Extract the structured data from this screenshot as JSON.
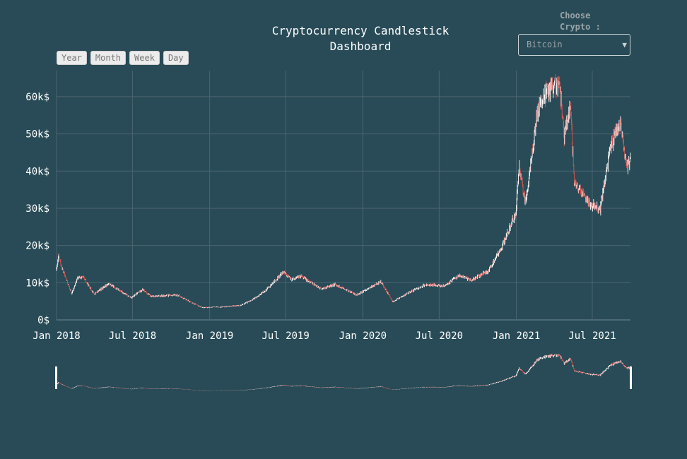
{
  "header": {
    "title_line1": "Cryptocurrency Candlestick",
    "title_line2": "Dashboard"
  },
  "range_buttons": [
    "Year",
    "Month",
    "Week",
    "Day"
  ],
  "crypto_select": {
    "label": "Choose Crypto :",
    "selected": "Bitcoin"
  },
  "colors": {
    "background": "#284b57",
    "increasing": "#ffffff",
    "decreasing": "#d9534f",
    "grid": "#4b6570"
  },
  "chart_data": {
    "type": "candlestick",
    "title": "Cryptocurrency Candlestick Dashboard",
    "xlabel": "",
    "ylabel": "",
    "x_ticks": [
      "Jan 2018",
      "Jul 2018",
      "Jan 2019",
      "Jul 2019",
      "Jan 2020",
      "Jul 2020",
      "Jan 2021",
      "Jul 2021"
    ],
    "y_ticks": [
      "0$",
      "10k$",
      "20k$",
      "30k$",
      "40k$",
      "50k$",
      "60k$"
    ],
    "ylim": [
      0,
      67000
    ],
    "xlim": [
      "2018-01-01",
      "2021-09-30"
    ],
    "grid": true,
    "range_slider": true,
    "series": [
      {
        "name": "Bitcoin",
        "approx_close_usd": [
          [
            "2018-01-01",
            13500
          ],
          [
            "2018-01-06",
            17100
          ],
          [
            "2018-01-15",
            13600
          ],
          [
            "2018-02-06",
            7000
          ],
          [
            "2018-02-20",
            11200
          ],
          [
            "2018-03-05",
            11500
          ],
          [
            "2018-04-01",
            6900
          ],
          [
            "2018-05-05",
            9800
          ],
          [
            "2018-06-28",
            5900
          ],
          [
            "2018-07-25",
            8200
          ],
          [
            "2018-08-14",
            6300
          ],
          [
            "2018-09-20",
            6500
          ],
          [
            "2018-10-15",
            6700
          ],
          [
            "2018-11-20",
            4600
          ],
          [
            "2018-12-15",
            3300
          ],
          [
            "2019-02-01",
            3500
          ],
          [
            "2019-03-15",
            3900
          ],
          [
            "2019-04-10",
            5200
          ],
          [
            "2019-05-15",
            8000
          ],
          [
            "2019-06-26",
            12900
          ],
          [
            "2019-07-15",
            10800
          ],
          [
            "2019-08-06",
            11800
          ],
          [
            "2019-09-25",
            8300
          ],
          [
            "2019-10-27",
            9500
          ],
          [
            "2019-12-17",
            6700
          ],
          [
            "2020-02-13",
            10300
          ],
          [
            "2020-03-12",
            4900
          ],
          [
            "2020-04-15",
            7000
          ],
          [
            "2020-05-30",
            9500
          ],
          [
            "2020-07-15",
            9200
          ],
          [
            "2020-08-17",
            12000
          ],
          [
            "2020-09-15",
            10700
          ],
          [
            "2020-10-25",
            13000
          ],
          [
            "2020-11-25",
            19000
          ],
          [
            "2020-12-31",
            29000
          ],
          [
            "2021-01-08",
            41000
          ],
          [
            "2021-01-23",
            31000
          ],
          [
            "2021-02-20",
            56000
          ],
          [
            "2021-03-13",
            61000
          ],
          [
            "2021-04-14",
            63500
          ],
          [
            "2021-04-25",
            49000
          ],
          [
            "2021-05-10",
            58000
          ],
          [
            "2021-05-19",
            37000
          ],
          [
            "2021-06-22",
            31500
          ],
          [
            "2021-07-20",
            29800
          ],
          [
            "2021-08-14",
            47000
          ],
          [
            "2021-09-06",
            52500
          ],
          [
            "2021-09-21",
            40500
          ],
          [
            "2021-09-30",
            43500
          ]
        ]
      }
    ]
  }
}
